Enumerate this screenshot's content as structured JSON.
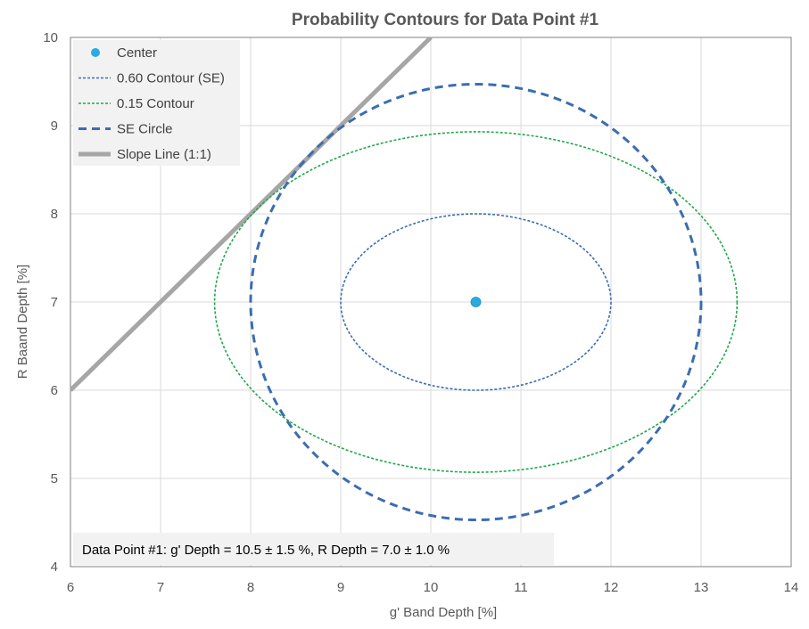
{
  "chart_data": {
    "type": "scatter",
    "title": "Probability Contours for Data Point #1",
    "xlabel": "g' Band Depth [%]",
    "ylabel": "R Baand Depth [%]",
    "xlim": [
      6,
      14
    ],
    "ylim": [
      4,
      10
    ],
    "xticks": [
      6,
      7,
      8,
      9,
      10,
      11,
      12,
      13,
      14
    ],
    "yticks": [
      4,
      5,
      6,
      7,
      8,
      9,
      10
    ],
    "grid": true,
    "legend_position": "top-left",
    "series": [
      {
        "name": "Center",
        "kind": "point",
        "color": "#29ABE2",
        "points": [
          [
            10.5,
            7.0
          ]
        ]
      },
      {
        "name": "0.60 Contour (SE)",
        "kind": "ellipse",
        "style": "dotted",
        "color": "#3B6DB0",
        "cx": 10.5,
        "cy": 7.0,
        "rx": 1.5,
        "ry": 1.0
      },
      {
        "name": "0.15 Contour",
        "kind": "ellipse",
        "style": "dotted",
        "color": "#1FA84A",
        "cx": 10.5,
        "cy": 7.0,
        "rx": 2.9,
        "ry": 1.93
      },
      {
        "name": "SE Circle",
        "kind": "ellipse",
        "style": "dashed",
        "color": "#3B6DB0",
        "cx": 10.5,
        "cy": 7.0,
        "rx": 2.5,
        "ry": 2.47
      },
      {
        "name": "Slope Line (1:1)",
        "kind": "line",
        "style": "solid",
        "color": "#A6A6A6",
        "points": [
          [
            6,
            6
          ],
          [
            10,
            10
          ]
        ]
      }
    ],
    "annotation": "Data Point #1: g' Depth = 10.5 ± 1.5 %, R Depth = 7.0 ± 1.0 %"
  }
}
